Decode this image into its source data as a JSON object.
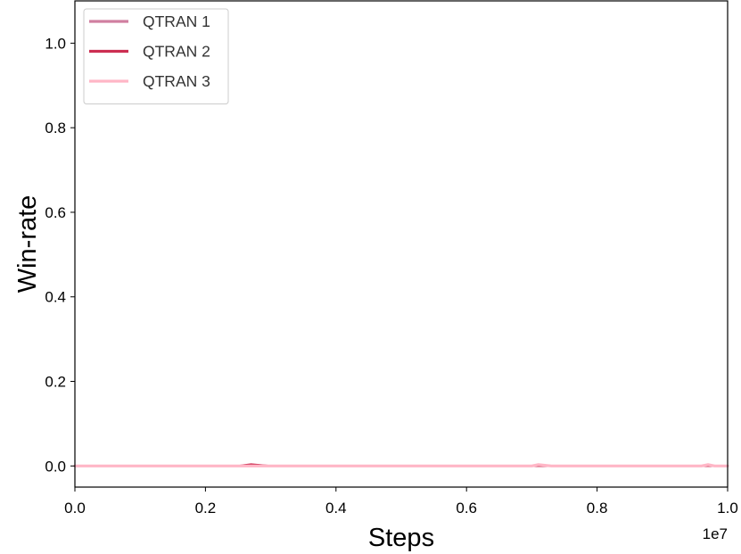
{
  "chart_data": {
    "type": "line",
    "title": "",
    "xlabel": "Steps",
    "ylabel": "Win-rate",
    "x_offset_label": "1e7",
    "xlim": [
      0.0,
      1.0
    ],
    "ylim": [
      -0.05,
      1.1
    ],
    "grid": false,
    "legend_position": "top-left",
    "x_ticks": [
      0.0,
      0.2,
      0.4,
      0.6,
      0.8,
      1.0
    ],
    "x_tick_labels": [
      "0.0",
      "0.2",
      "0.4",
      "0.6",
      "0.8",
      "1.0"
    ],
    "y_ticks": [
      0.0,
      0.2,
      0.4,
      0.6,
      0.8,
      1.0
    ],
    "y_tick_labels": [
      "0.0",
      "0.2",
      "0.4",
      "0.6",
      "0.8",
      "1.0"
    ],
    "series": [
      {
        "name": "QTRAN 1",
        "color": "#d07fa0",
        "x": [
          0.0,
          0.25,
          0.26,
          0.27,
          0.3,
          0.5,
          0.7,
          0.71,
          0.73,
          0.9,
          0.96,
          0.97,
          1.0
        ],
        "y": [
          0.0,
          0.0,
          0.0,
          0.003,
          0.0,
          0.0,
          0.0,
          0.0,
          0.0,
          0.0,
          0.0,
          0.0,
          0.0
        ]
      },
      {
        "name": "QTRAN 2",
        "color": "#cc2e52",
        "x": [
          0.0,
          0.25,
          0.26,
          0.27,
          0.3,
          0.5,
          0.7,
          0.71,
          0.73,
          0.9,
          0.96,
          0.97,
          1.0
        ],
        "y": [
          0.0,
          0.0,
          0.002,
          0.004,
          0.0,
          0.0,
          0.0,
          0.0,
          0.0,
          0.0,
          0.0,
          0.0,
          0.0
        ]
      },
      {
        "name": "QTRAN 3",
        "color": "#ffb6c6",
        "x": [
          0.0,
          0.25,
          0.3,
          0.5,
          0.7,
          0.71,
          0.73,
          0.9,
          0.96,
          0.97,
          0.98,
          1.0
        ],
        "y": [
          0.0,
          0.0,
          0.0,
          0.0,
          0.0,
          0.003,
          0.0,
          0.0,
          0.0,
          0.003,
          0.0,
          0.0
        ]
      }
    ]
  }
}
